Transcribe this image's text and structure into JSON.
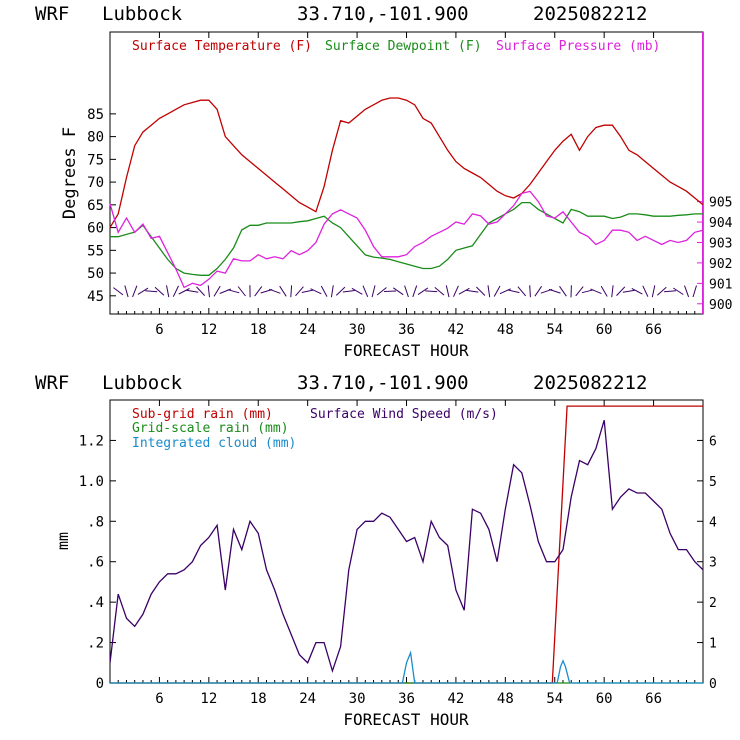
{
  "charts": [
    {
      "header": {
        "model": "WRF",
        "station": "Lubbock",
        "coords": "33.710,-101.900",
        "init": "2025082212"
      },
      "ylabel": "Degrees F",
      "xlabel": "FORECAST HOUR",
      "legend": [
        {
          "label": "Surface Temperature (F)",
          "color": "#c00000"
        },
        {
          "label": "Surface Dewpoint (F)",
          "color": "#1a8c1a"
        },
        {
          "label": "Surface Pressure (mb)",
          "color": "#dd22dd"
        }
      ]
    },
    {
      "header": {
        "model": "WRF",
        "station": "Lubbock",
        "coords": "33.710,-101.900",
        "init": "2025082212"
      },
      "ylabel": "mm",
      "xlabel": "FORECAST HOUR",
      "legend": [
        {
          "label": "Sub-grid rain (mm)",
          "color": "#c00000"
        },
        {
          "label": "Grid-scale rain (mm)",
          "color": "#1a8c1a"
        },
        {
          "label": "Integrated cloud (mm)",
          "color": "#1a8ccc"
        },
        {
          "label": "Surface Wind Speed (m/s)",
          "color": "#3b0066"
        }
      ]
    }
  ],
  "chart_data": [
    {
      "type": "line",
      "xlim": [
        0,
        72
      ],
      "ylim": [
        41,
        103
      ],
      "y2lim": [
        899.5,
        913.3
      ],
      "xticks": [
        6,
        12,
        18,
        24,
        30,
        36,
        42,
        48,
        54,
        60,
        66
      ],
      "yticks": [
        45,
        50,
        55,
        60,
        65,
        70,
        75,
        80,
        85
      ],
      "y2ticks": [
        900,
        901,
        902,
        903,
        904,
        905
      ],
      "series": [
        {
          "name": "Surface Temperature (F)",
          "axis": "left",
          "color": "#c00000",
          "x": [
            0,
            1,
            2,
            3,
            4,
            5,
            6,
            7,
            8,
            9,
            10,
            11,
            12,
            13,
            14,
            15,
            16,
            17,
            18,
            19,
            20,
            21,
            22,
            23,
            24,
            25,
            26,
            27,
            28,
            29,
            30,
            31,
            32,
            33,
            34,
            35,
            36,
            37,
            38,
            39,
            40,
            41,
            42,
            43,
            44,
            45,
            46,
            47,
            48,
            49,
            50,
            51,
            52,
            53,
            54,
            55,
            56,
            57,
            58,
            59,
            60,
            61,
            62,
            63,
            64,
            65,
            66,
            67,
            68,
            69,
            70,
            71,
            72
          ],
          "y": [
            60,
            63,
            71,
            78,
            81,
            82.5,
            84,
            85,
            86,
            87,
            87.5,
            88,
            88,
            86,
            80,
            78,
            76,
            74.5,
            73,
            71.5,
            70,
            68.5,
            67,
            65.5,
            64.5,
            63.5,
            69,
            77,
            83.5,
            83,
            84.5,
            86,
            87,
            88,
            88.5,
            88.5,
            88,
            87,
            84,
            83,
            80,
            77,
            74.5,
            73,
            72,
            71,
            69.5,
            68,
            67,
            66.5,
            67.5,
            69.5,
            72,
            74.5,
            77,
            79,
            80.5,
            77,
            80,
            82,
            82.5,
            82.5,
            80,
            77,
            76,
            74.5,
            73,
            71.5,
            70,
            69,
            68,
            66.5,
            65
          ]
        },
        {
          "name": "Surface Dewpoint (F)",
          "axis": "left",
          "color": "#1a8c1a",
          "x": [
            0,
            1,
            2,
            3,
            4,
            5,
            6,
            7,
            8,
            9,
            10,
            11,
            12,
            13,
            14,
            15,
            16,
            17,
            18,
            19,
            20,
            21,
            22,
            23,
            24,
            25,
            26,
            27,
            28,
            29,
            30,
            31,
            32,
            33,
            34,
            35,
            36,
            37,
            38,
            39,
            40,
            41,
            42,
            43,
            44,
            45,
            46,
            47,
            48,
            49,
            50,
            51,
            52,
            53,
            54,
            55,
            56,
            57,
            58,
            59,
            60,
            61,
            62,
            63,
            64,
            65,
            66,
            67,
            68,
            69,
            70,
            71,
            72
          ],
          "y": [
            58,
            58,
            58.5,
            59,
            60.5,
            58,
            55.5,
            53,
            51,
            50,
            49.7,
            49.5,
            49.5,
            51,
            53,
            55.5,
            59.5,
            60.5,
            60.5,
            61,
            61,
            61,
            61,
            61.3,
            61.5,
            62,
            62.5,
            61,
            60,
            58,
            56,
            54,
            53.5,
            53.3,
            53,
            52.5,
            52,
            51.5,
            51,
            51,
            51.5,
            53,
            55,
            55.5,
            56,
            58.5,
            61,
            62,
            63,
            64,
            65.5,
            65.5,
            64,
            63,
            62,
            61,
            64,
            63.5,
            62.5,
            62.5,
            62.5,
            62,
            62.3,
            63,
            63,
            62.8,
            62.5,
            62.5,
            62.5,
            62.7,
            62.8,
            63,
            63
          ]
        },
        {
          "name": "Surface Pressure (mb)",
          "axis": "right",
          "color": "#dd22dd",
          "x": [
            0,
            1,
            2,
            3,
            4,
            5,
            6,
            7,
            8,
            9,
            10,
            11,
            12,
            13,
            14,
            15,
            16,
            17,
            18,
            19,
            20,
            21,
            22,
            23,
            24,
            25,
            26,
            27,
            28,
            29,
            30,
            31,
            32,
            33,
            34,
            35,
            36,
            37,
            38,
            39,
            40,
            41,
            42,
            43,
            44,
            45,
            46,
            47,
            48,
            49,
            50,
            51,
            52,
            53,
            54,
            55,
            56,
            57,
            58,
            59,
            60,
            61,
            62,
            63,
            64,
            65,
            66,
            67,
            68,
            69,
            70,
            71,
            72
          ],
          "y": [
            904.9,
            903.5,
            904.2,
            903.5,
            903.9,
            903.2,
            903.3,
            902.5,
            901.7,
            900.8,
            901.0,
            900.9,
            901.2,
            901.6,
            901.5,
            902.2,
            902.1,
            902.1,
            902.4,
            902.2,
            902.3,
            902.2,
            902.6,
            902.4,
            902.6,
            903.0,
            903.9,
            904.4,
            904.6,
            904.4,
            904.2,
            903.6,
            902.8,
            902.3,
            902.3,
            902.3,
            902.4,
            902.8,
            903.0,
            903.3,
            903.5,
            903.7,
            904.0,
            903.9,
            904.4,
            904.3,
            903.9,
            904.0,
            904.4,
            904.8,
            905.4,
            905.5,
            905.0,
            904.3,
            904.2,
            904.5,
            904.0,
            903.5,
            903.3,
            902.9,
            903.1,
            903.6,
            903.6,
            903.5,
            903.1,
            903.3,
            903.1,
            902.9,
            903.1,
            903.0,
            903.1,
            903.5,
            903.6
          ]
        }
      ],
      "wind_barbs": {
        "color": "#3b0066",
        "axis_value": 46
      }
    },
    {
      "type": "line",
      "xlim": [
        0,
        72
      ],
      "ylim": [
        0,
        1.4
      ],
      "y2lim": [
        0,
        7
      ],
      "xticks": [
        6,
        12,
        18,
        24,
        30,
        36,
        42,
        48,
        54,
        60,
        66
      ],
      "yticks": [
        0,
        0.2,
        0.4,
        0.6,
        0.8,
        1.0,
        1.2
      ],
      "yticklabels": [
        "0",
        ".2",
        ".4",
        ".6",
        ".8",
        "1.0",
        "1.2"
      ],
      "y2ticks": [
        0,
        1,
        2,
        3,
        4,
        5,
        6
      ],
      "series": [
        {
          "name": "Sub-grid rain (mm)",
          "axis": "left",
          "color": "#c00000",
          "x": [
            0,
            53.7,
            55.5,
            72
          ],
          "y": [
            0,
            0,
            1.37,
            1.37
          ]
        },
        {
          "name": "Grid-scale rain (mm)",
          "axis": "left",
          "color": "#1a8c1a",
          "x": [
            0,
            72
          ],
          "y": [
            0,
            0
          ]
        },
        {
          "name": "Integrated cloud (mm)",
          "axis": "left",
          "color": "#1a8ccc",
          "x": [
            0,
            35.5,
            36,
            36.5,
            37,
            54.3,
            54.7,
            55,
            55.3,
            55.8,
            72
          ],
          "y": [
            0,
            0,
            0.1,
            0.15,
            0,
            0,
            0.08,
            0.11,
            0.08,
            0,
            0
          ]
        },
        {
          "name": "Surface Wind Speed (m/s)",
          "axis": "right",
          "color": "#3b0066",
          "x": [
            0,
            1,
            2,
            3,
            4,
            5,
            6,
            7,
            8,
            9,
            10,
            11,
            12,
            13,
            14,
            15,
            16,
            17,
            18,
            19,
            20,
            21,
            22,
            23,
            24,
            25,
            26,
            27,
            28,
            29,
            30,
            31,
            32,
            33,
            34,
            35,
            36,
            37,
            38,
            39,
            40,
            41,
            42,
            43,
            44,
            45,
            46,
            47,
            48,
            49,
            50,
            51,
            52,
            53,
            54,
            55,
            56,
            57,
            58,
            59,
            60,
            61,
            62,
            63,
            64,
            65,
            66,
            67,
            68,
            69,
            70,
            71,
            72
          ],
          "y": [
            0.5,
            2.2,
            1.6,
            1.4,
            1.7,
            2.2,
            2.5,
            2.7,
            2.7,
            2.8,
            3.0,
            3.4,
            3.6,
            3.9,
            2.3,
            3.8,
            3.3,
            4.0,
            3.7,
            2.8,
            2.3,
            1.7,
            1.2,
            0.7,
            0.5,
            1.0,
            1.0,
            0.3,
            0.9,
            2.8,
            3.8,
            4.0,
            4.0,
            4.2,
            4.1,
            3.8,
            3.5,
            3.6,
            3.0,
            4.0,
            3.6,
            3.4,
            2.3,
            1.8,
            4.3,
            4.2,
            3.8,
            3.0,
            4.3,
            5.4,
            5.2,
            4.4,
            3.5,
            3.0,
            3.0,
            3.3,
            4.6,
            5.5,
            5.4,
            5.8,
            6.5,
            4.3,
            4.6,
            4.8,
            4.7,
            4.7,
            4.5,
            4.3,
            3.7,
            3.3,
            3.3,
            3.0,
            2.8
          ]
        }
      ]
    }
  ]
}
